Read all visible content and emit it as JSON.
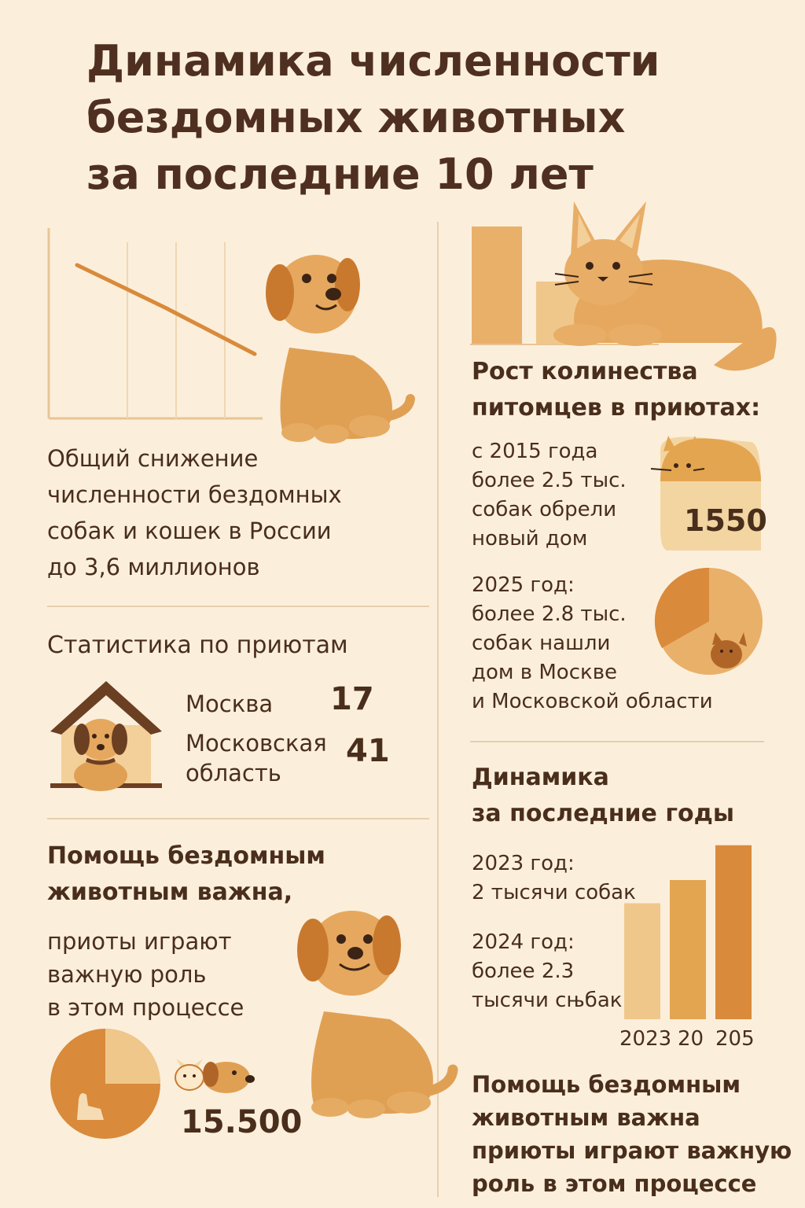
{
  "title": {
    "line1": "Динамика численности",
    "line2": "бездомных животных",
    "line3": "за последние 10 лет"
  },
  "decline": {
    "line1": "Общий снижение",
    "line2": "численности бездомных",
    "line3": "собак и кошек в России",
    "line4": "до 3,6 миллионов"
  },
  "shelters": {
    "heading": "Статистика по приютам",
    "rows": [
      {
        "label": "Москва",
        "value": "17"
      },
      {
        "label_line1": "Московская",
        "label_line2": "область",
        "value": "41"
      }
    ]
  },
  "help_left": {
    "heading_line1": "Помощь бездомным",
    "heading_line2": "животным важна,",
    "line1": "приоты играют",
    "line2": "важную роль",
    "line3": "в этом процессе",
    "number": "15.500"
  },
  "growth": {
    "heading_line1": "Рост колинества",
    "heading_line2": "питомцев в приютах:",
    "block1": [
      "с 2015 года",
      "более 2.5 тыс.",
      "собак обрели",
      "новый дом"
    ],
    "block1_value": "1550",
    "block2": [
      "2025 год:",
      "более 2.8 тыс.",
      "собак нашли",
      "дом в Москве",
      "и Московской области"
    ]
  },
  "dynamics": {
    "heading_line1": "Динамика",
    "heading_line2": "за последние годы",
    "y2023": [
      "2023 год:",
      "2 тысячи собак"
    ],
    "y2024": [
      "2024 год:",
      "более 2.3",
      "тысячи сњбак"
    ],
    "axis": [
      "2023",
      "20",
      "205"
    ]
  },
  "help_right": {
    "line1": "Помощь бездомным",
    "line2": "животным важна",
    "line3": "приюты играют  важную",
    "line4": "роль в этом процессе"
  },
  "colors": {
    "background": "#fbefdc",
    "light": "#f0c78a",
    "mid": "#e3a54f",
    "dark": "#d98a3a",
    "text": "#4a2e1c"
  },
  "chart_data": [
    {
      "type": "line",
      "title": "",
      "series": [
        {
          "values": [
            10,
            8.6,
            7.2,
            5.7,
            4.2
          ]
        }
      ],
      "x": [
        1,
        2,
        3,
        4,
        5
      ],
      "ylim": [
        0,
        12
      ],
      "grid": true
    },
    {
      "type": "bar",
      "title": "",
      "categories": [
        "2023",
        "20",
        "205"
      ],
      "values": [
        2.0,
        2.4,
        3.0
      ],
      "ylim": [
        0,
        3.2
      ]
    }
  ]
}
